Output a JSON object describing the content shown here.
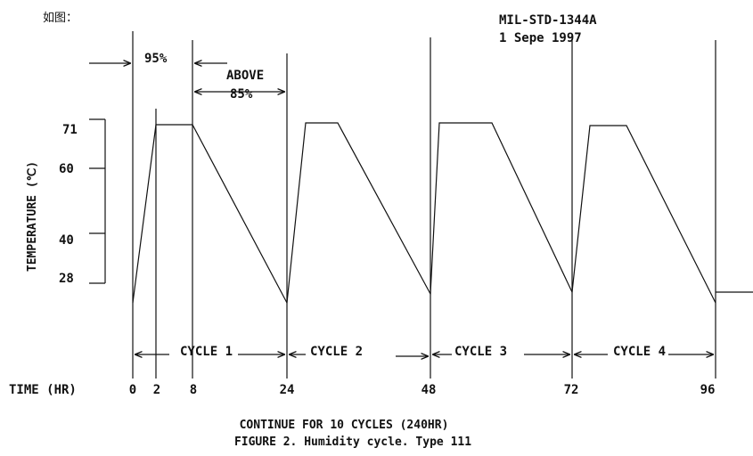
{
  "intro_label": "如图：",
  "doc_ref": {
    "line1": "MIL-STD-1344A",
    "line2": "1 Sepe 1997"
  },
  "humidity_labels": {
    "h95": "95%",
    "above": "ABOVE",
    "h85": "85%"
  },
  "y_axis": {
    "label": "TEMPERATURE (℃)",
    "ticks": [
      "71",
      "60",
      "40",
      "28"
    ]
  },
  "x_axis": {
    "label": "TIME (HR)",
    "ticks": [
      "0",
      "2",
      "8",
      "24",
      "48",
      "72",
      "96"
    ]
  },
  "cycles": [
    "CYCLE 1",
    "CYCLE 2",
    "CYCLE 3",
    "CYCLE 4"
  ],
  "footer": {
    "line1": "CONTINUE FOR 10 CYCLES (240HR)",
    "line2": "FIGURE 2.  Humidity cycle. Type 111"
  }
}
